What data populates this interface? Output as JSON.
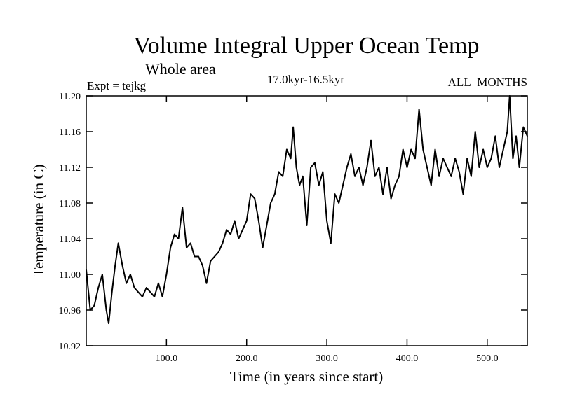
{
  "chart_data": {
    "type": "line",
    "title": "Volume Integral Upper Ocean Temp",
    "subtitle": "Whole area",
    "expt_label": "Expt = tejkg",
    "period_label": "17.0kyr-16.5kyr",
    "months_label": "ALL_MONTHS",
    "xlabel": "Time (in years since start)",
    "ylabel": "Temperature (in C)",
    "xlim": [
      0,
      550
    ],
    "ylim": [
      10.92,
      11.2
    ],
    "x_ticks": [
      100,
      200,
      300,
      400,
      500
    ],
    "x_tick_labels": [
      "100.0",
      "200.0",
      "300.0",
      "400.0",
      "500.0"
    ],
    "y_ticks": [
      10.92,
      10.96,
      11.0,
      11.04,
      11.08,
      11.12,
      11.16,
      11.2
    ],
    "y_tick_labels": [
      "10.92",
      "10.96",
      "11.00",
      "11.04",
      "11.08",
      "11.12",
      "11.16",
      "11.20"
    ],
    "grid": false,
    "line_color": "#000000",
    "series": [
      {
        "name": "Temperature",
        "x": [
          0,
          5,
          10,
          15,
          20,
          25,
          28,
          32,
          36,
          40,
          45,
          50,
          55,
          60,
          65,
          70,
          75,
          80,
          85,
          90,
          95,
          100,
          105,
          110,
          115,
          120,
          125,
          130,
          135,
          140,
          145,
          150,
          155,
          160,
          165,
          170,
          175,
          180,
          185,
          190,
          195,
          200,
          205,
          210,
          215,
          220,
          225,
          230,
          235,
          240,
          245,
          250,
          255,
          258,
          262,
          266,
          270,
          275,
          280,
          285,
          290,
          295,
          300,
          305,
          310,
          315,
          320,
          325,
          330,
          335,
          340,
          345,
          350,
          355,
          360,
          365,
          370,
          375,
          380,
          385,
          390,
          395,
          400,
          405,
          410,
          415,
          420,
          425,
          430,
          435,
          440,
          445,
          450,
          455,
          460,
          465,
          470,
          475,
          480,
          485,
          490,
          495,
          500,
          505,
          510,
          515,
          520,
          525,
          528,
          532,
          536,
          540,
          545,
          550
        ],
        "values": [
          11.005,
          10.96,
          10.965,
          10.985,
          11.0,
          10.96,
          10.945,
          10.98,
          11.01,
          11.035,
          11.01,
          10.99,
          11.0,
          10.985,
          10.98,
          10.975,
          10.985,
          10.98,
          10.975,
          10.99,
          10.975,
          11.0,
          11.03,
          11.045,
          11.04,
          11.075,
          11.03,
          11.035,
          11.02,
          11.02,
          11.01,
          10.99,
          11.015,
          11.02,
          11.025,
          11.035,
          11.05,
          11.045,
          11.06,
          11.04,
          11.05,
          11.06,
          11.09,
          11.085,
          11.06,
          11.03,
          11.055,
          11.08,
          11.09,
          11.115,
          11.11,
          11.14,
          11.13,
          11.165,
          11.12,
          11.1,
          11.11,
          11.055,
          11.12,
          11.125,
          11.1,
          11.115,
          11.06,
          11.035,
          11.09,
          11.08,
          11.1,
          11.12,
          11.135,
          11.11,
          11.12,
          11.1,
          11.12,
          11.15,
          11.11,
          11.12,
          11.09,
          11.12,
          11.085,
          11.1,
          11.11,
          11.14,
          11.12,
          11.14,
          11.13,
          11.185,
          11.14,
          11.12,
          11.1,
          11.14,
          11.11,
          11.13,
          11.12,
          11.11,
          11.13,
          11.115,
          11.09,
          11.13,
          11.11,
          11.16,
          11.12,
          11.14,
          11.12,
          11.13,
          11.155,
          11.12,
          11.14,
          11.16,
          11.2,
          11.13,
          11.155,
          11.12,
          11.165,
          11.155
        ]
      }
    ]
  }
}
